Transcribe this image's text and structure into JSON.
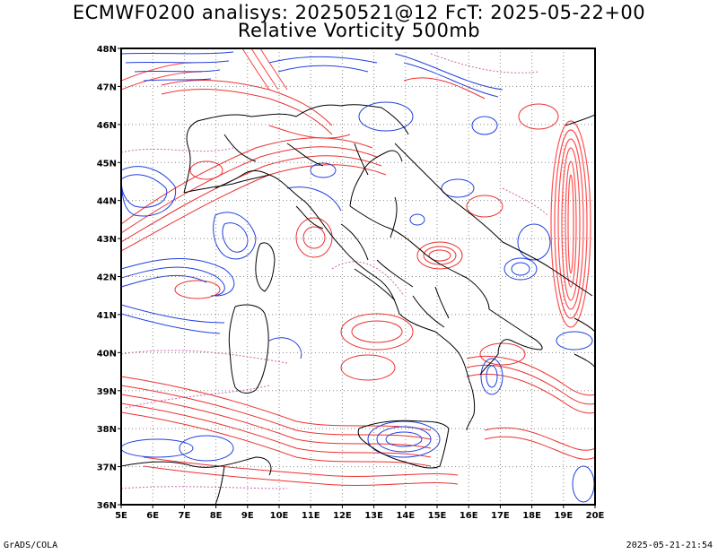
{
  "title_line1": "ECMWF0200 analisys: 20250521@12 FcT: 2025-05-22+00",
  "title_line2": "Relative Vorticity 500mb",
  "lat_labels": [
    "36N",
    "37N",
    "38N",
    "39N",
    "40N",
    "41N",
    "42N",
    "43N",
    "44N",
    "45N",
    "46N",
    "47N",
    "48N"
  ],
  "lon_labels": [
    "5E",
    "6E",
    "7E",
    "8E",
    "9E",
    "10E",
    "11E",
    "12E",
    "13E",
    "14E",
    "15E",
    "16E",
    "17E",
    "18E",
    "19E",
    "20E"
  ],
  "footer_left": "GrADS/COLA",
  "footer_right": "2025-05-21-21:54",
  "colors": {
    "positive": "#ee3030",
    "negative": "#2040e0",
    "zero": "#cc66aa",
    "coast": "#000000",
    "grid": "#888888"
  }
}
